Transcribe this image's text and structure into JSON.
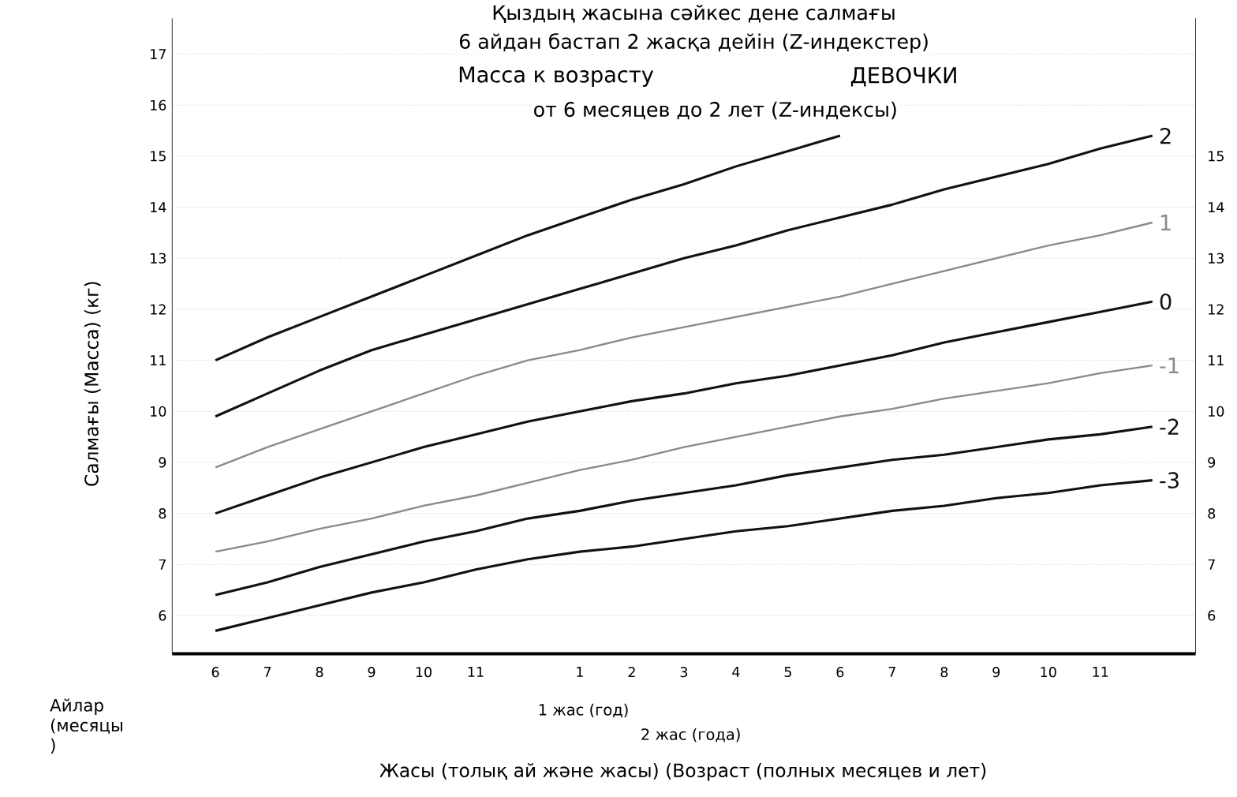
{
  "chart_data": {
    "type": "line",
    "title": "Қыздың жасына сәйкес дене салмағы",
    "subtitle": "6 айдан бастап 2 жасқа дейін (Z-индекстер)",
    "annotations": [
      "Масса к возрасту",
      "ДЕВОЧКИ",
      "от 6 месяцев до 2 лет (Z-индексы)",
      "1 жас (год)",
      "2 жас (года)",
      "Айлар (месяцы )"
    ],
    "xlabel": "Жасы (толық ай және жасы) (Возраст (полных месяцев и лет)",
    "ylabel": "Салмағы (Масса) (кг)",
    "categories": [
      "6",
      "7",
      "8",
      "9",
      "10",
      "11",
      null,
      "1",
      "2",
      "3",
      "4",
      "5",
      "6",
      "7",
      "8",
      "9",
      "10",
      "11",
      null
    ],
    "series": [
      {
        "color": "#111111",
        "values": [
          11.0,
          11.45,
          11.85,
          12.25,
          12.65,
          13.05,
          13.45,
          13.8,
          14.15,
          14.45,
          14.8,
          15.1,
          15.4,
          null,
          null,
          null,
          null,
          null,
          null
        ]
      },
      {
        "name": "2",
        "color": "#111111",
        "values": [
          9.9,
          10.35,
          10.8,
          11.2,
          11.5,
          11.8,
          12.1,
          12.4,
          12.7,
          13.0,
          13.25,
          13.55,
          13.8,
          14.05,
          14.35,
          14.6,
          14.85,
          15.15,
          15.4
        ]
      },
      {
        "name": "1",
        "color": "#8a8a8a",
        "values": [
          8.9,
          9.3,
          9.65,
          10.0,
          10.35,
          10.7,
          11.0,
          11.2,
          11.45,
          11.65,
          11.85,
          12.05,
          12.25,
          12.5,
          12.75,
          13.0,
          13.25,
          13.45,
          13.7
        ]
      },
      {
        "name": "0",
        "color": "#111111",
        "values": [
          8.0,
          8.35,
          8.7,
          9.0,
          9.3,
          9.55,
          9.8,
          10.0,
          10.2,
          10.35,
          10.55,
          10.7,
          10.9,
          11.1,
          11.35,
          11.55,
          11.75,
          11.95,
          12.15
        ]
      },
      {
        "name": "-1",
        "color": "#8a8a8a",
        "values": [
          7.25,
          7.45,
          7.7,
          7.9,
          8.15,
          8.35,
          8.6,
          8.85,
          9.05,
          9.3,
          9.5,
          9.7,
          9.9,
          10.05,
          10.25,
          10.4,
          10.55,
          10.75,
          10.9
        ]
      },
      {
        "name": "-2",
        "color": "#111111",
        "values": [
          6.4,
          6.65,
          6.95,
          7.2,
          7.45,
          7.65,
          7.9,
          8.05,
          8.25,
          8.4,
          8.55,
          8.75,
          8.9,
          9.05,
          9.15,
          9.3,
          9.45,
          9.55,
          9.7
        ]
      },
      {
        "name": "-3",
        "color": "#111111",
        "values": [
          5.7,
          5.95,
          6.2,
          6.45,
          6.65,
          6.9,
          7.1,
          7.25,
          7.35,
          7.5,
          7.65,
          7.75,
          7.9,
          8.05,
          8.15,
          8.3,
          8.4,
          8.55,
          8.65
        ]
      }
    ],
    "ylim": [
      5.25,
      17.7
    ],
    "y2lim": [
      5.25,
      17.7
    ],
    "yticks": [
      6,
      7,
      8,
      9,
      10,
      11,
      12,
      13,
      14,
      15,
      16,
      17
    ],
    "y2ticks": [
      6,
      7,
      8,
      9,
      10,
      11,
      12,
      13,
      14,
      15
    ],
    "grid": "y",
    "marker": "none",
    "line_style": "solid"
  }
}
